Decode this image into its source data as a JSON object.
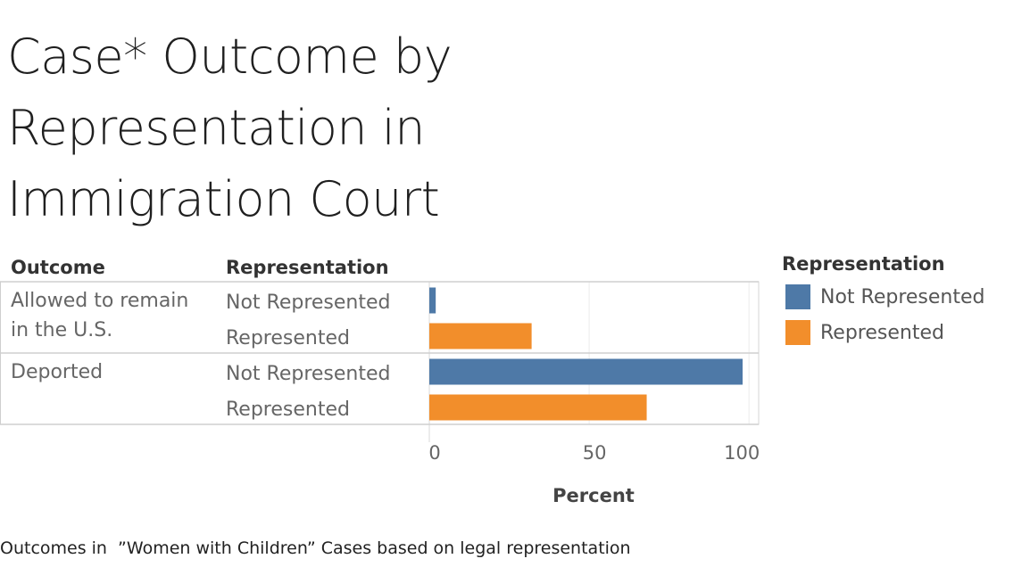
{
  "title": "Case* Outcome by Representation in Immigration Court",
  "caption": "Outcomes in  ”Women with Children” Cases based on legal representation",
  "colors": {
    "Not Represented": "#4e79a7",
    "Represented": "#f28e2b"
  },
  "legend": {
    "title": "Representation",
    "items": [
      {
        "label": "Not Represented",
        "color": "#4e79a7"
      },
      {
        "label": "Represented",
        "color": "#f28e2b"
      }
    ]
  },
  "chart_data": {
    "type": "bar",
    "orientation": "horizontal",
    "row_headers": [
      "Outcome",
      "Representation"
    ],
    "groups": [
      {
        "outcome": "Allowed to remain in the U.S.",
        "outcome_lines": [
          "Allowed to remain",
          "in the U.S."
        ],
        "bars": [
          {
            "representation": "Not Represented",
            "value": 2
          },
          {
            "representation": "Represented",
            "value": 32
          }
        ]
      },
      {
        "outcome": "Deported",
        "outcome_lines": [
          "Deported"
        ],
        "bars": [
          {
            "representation": "Not Represented",
            "value": 98
          },
          {
            "representation": "Represented",
            "value": 68
          }
        ]
      }
    ],
    "xlabel": "Percent",
    "xlim": [
      0,
      102
    ],
    "xticks": [
      0,
      50,
      100
    ],
    "grid": true
  }
}
